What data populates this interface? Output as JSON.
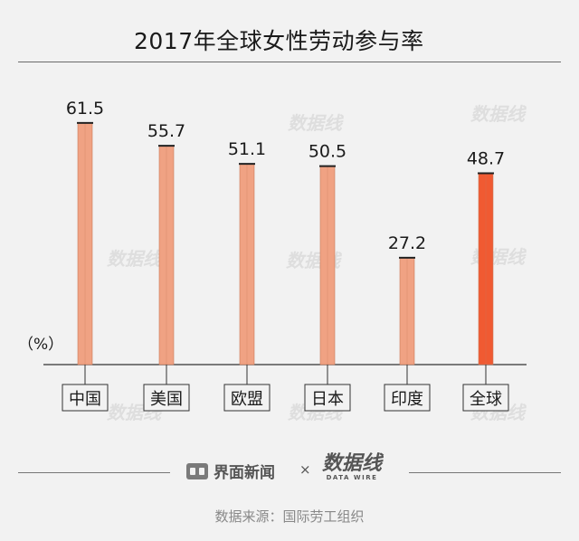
{
  "title": "2017年全球女性劳动参与率",
  "unit_label": "（%）",
  "chart_data": {
    "type": "bar",
    "title": "2017年全球女性劳动参与率",
    "categories": [
      "中国",
      "美国",
      "欧盟",
      "日本",
      "印度",
      "全球"
    ],
    "values": [
      61.5,
      55.7,
      51.1,
      50.5,
      27.2,
      48.7
    ],
    "value_labels": [
      "61.5",
      "55.7",
      "51.1",
      "50.5",
      "27.2",
      "48.7"
    ],
    "highlight": "全球",
    "ylim": [
      0,
      70
    ],
    "grid": false,
    "colors": {
      "default": "#f0a283",
      "highlight": "#f05a32",
      "edge": "#c8795a",
      "cap": "#222222"
    }
  },
  "footer": {
    "brand": "界面新闻",
    "times": "×",
    "datawire": "数据线",
    "datawire_en": "DATA WIRE",
    "source": "数据来源：国际劳工组织"
  },
  "watermark": "数据线"
}
